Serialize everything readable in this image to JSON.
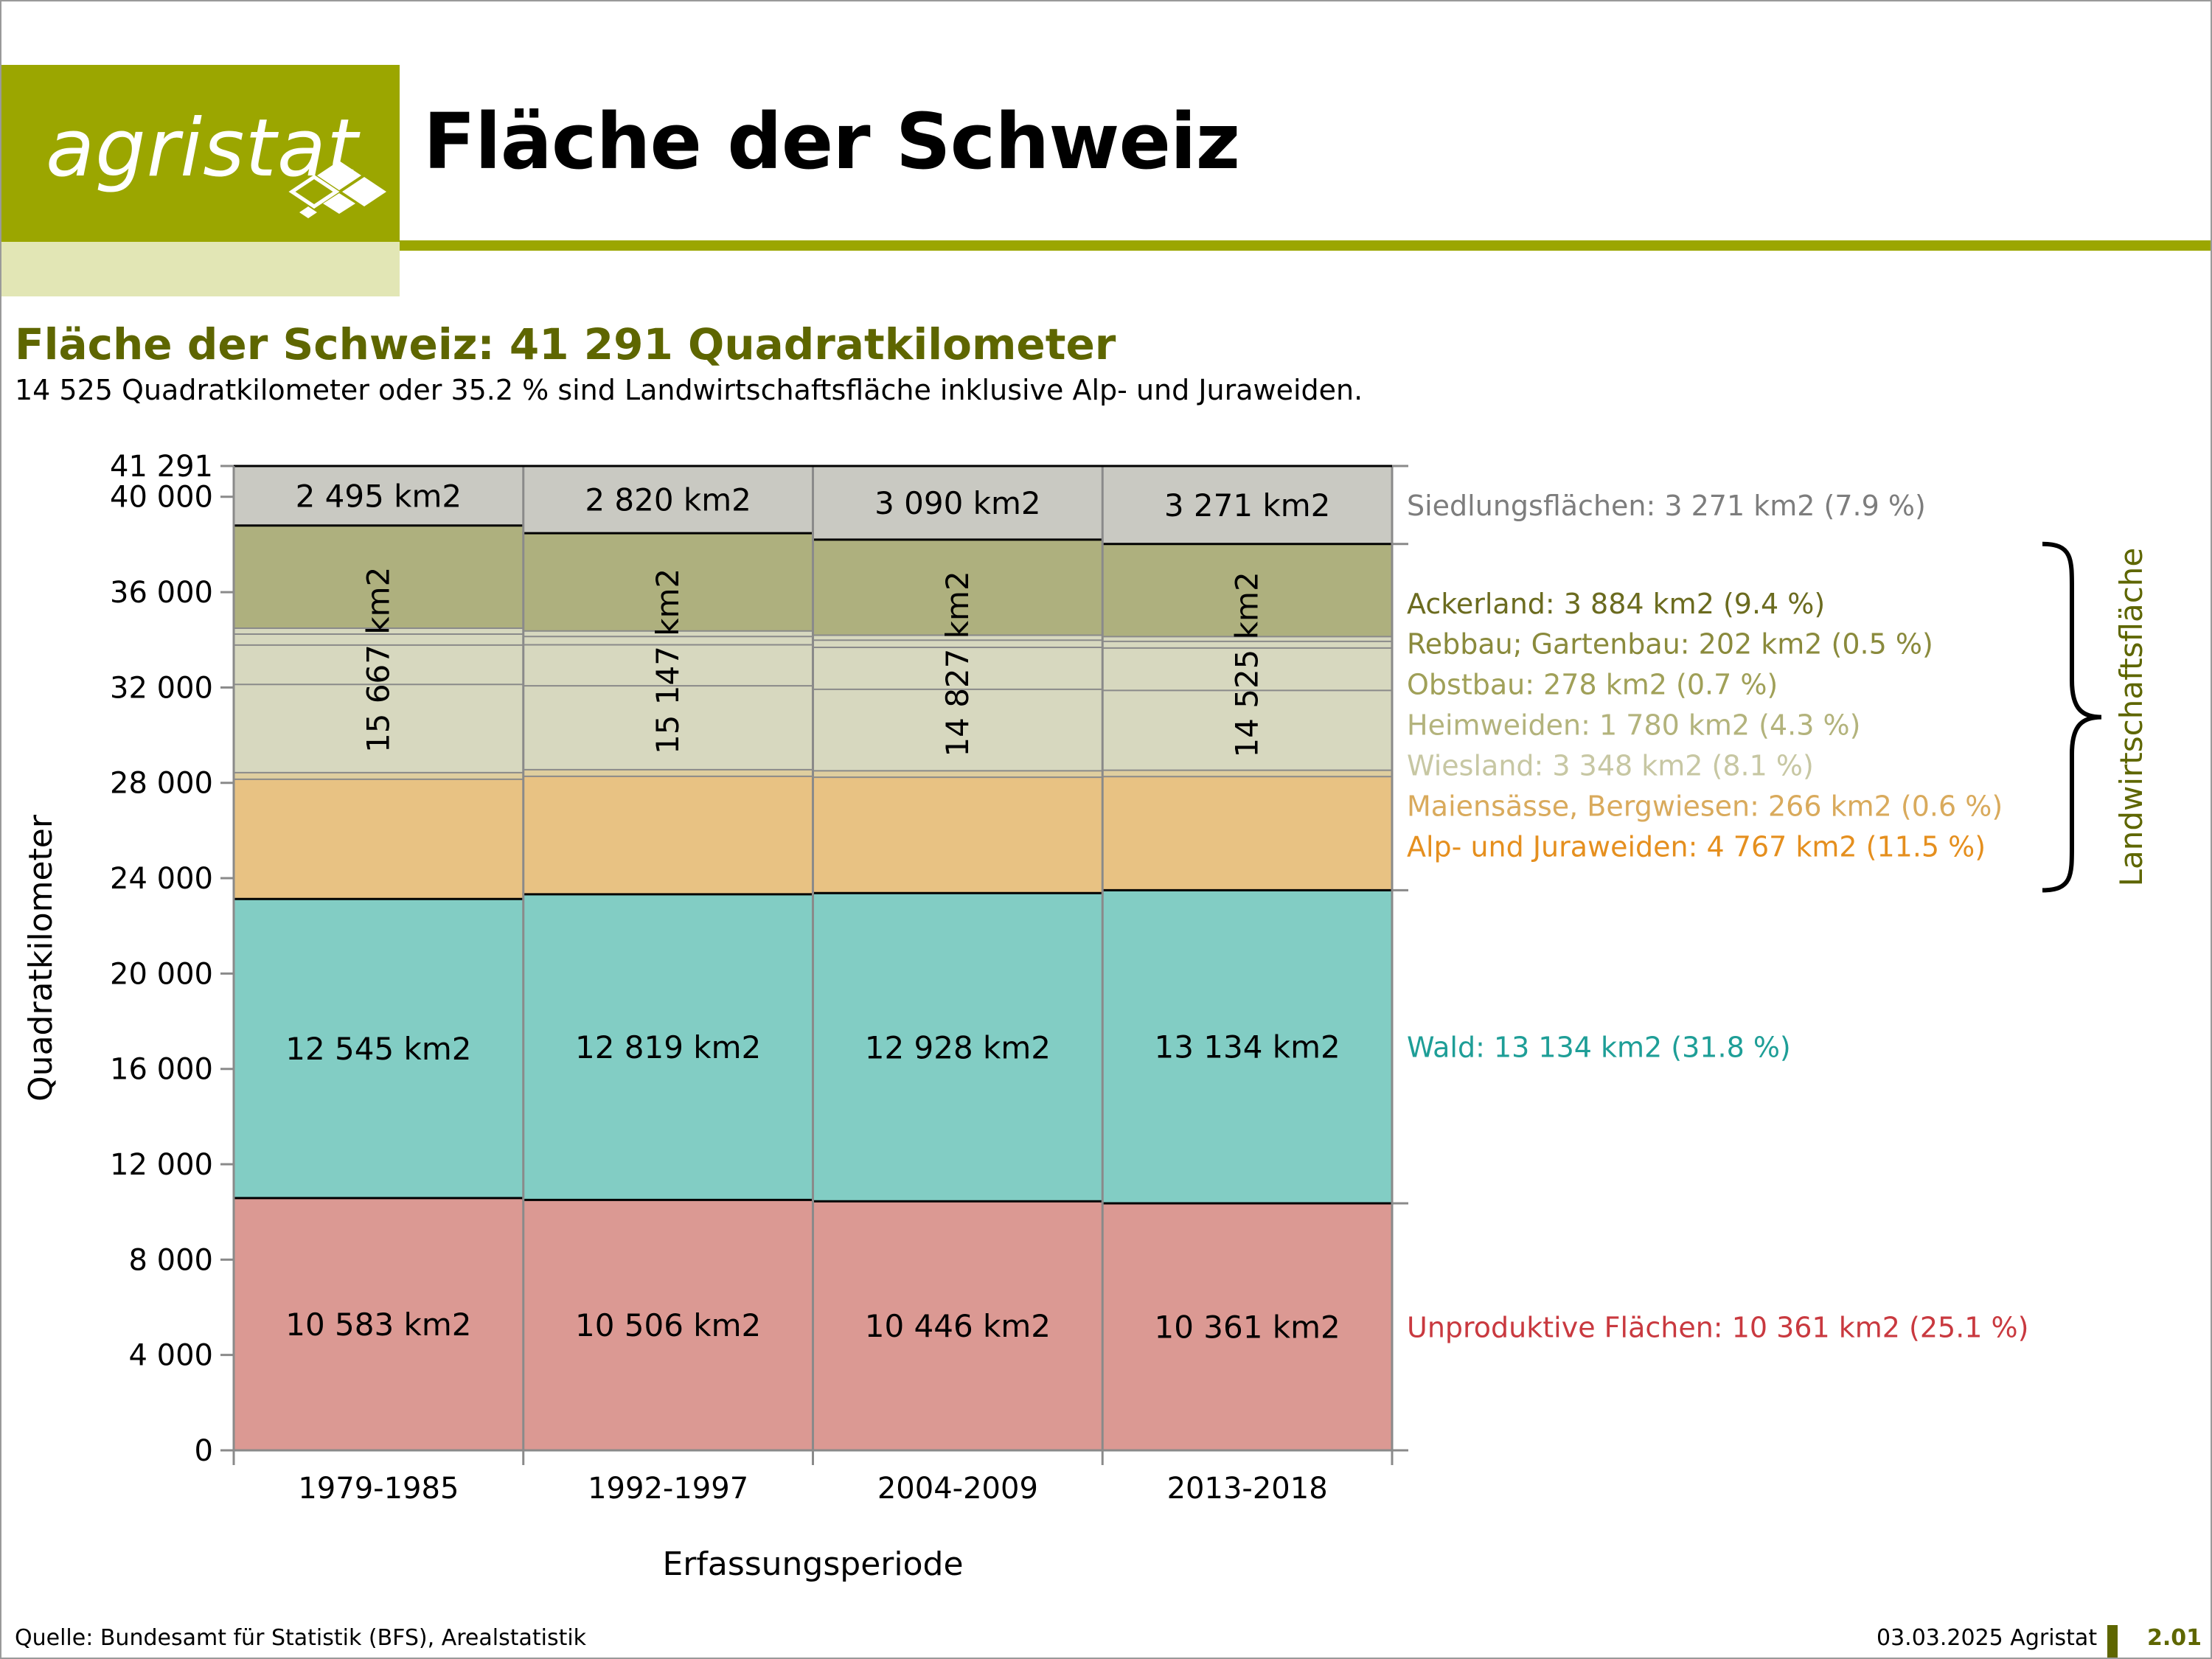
{
  "header": {
    "logo_text": "agristat",
    "title": "Fläche der Schweiz"
  },
  "subtitle": {
    "headline": "Fläche der Schweiz: 41 291 Quadratkilometer",
    "text": "14 525 Quadratkilometer oder 35.2 % sind Landwirtschaftsfläche inklusive Alp- und Juraweiden."
  },
  "footer": {
    "source": "Quelle: Bundesamt für Statistik (BFS), Arealstatistik",
    "date": "03.03.2025 Agristat",
    "page": "2.01"
  },
  "chart_data": {
    "type": "bar",
    "stacked": true,
    "xlabel": "Erfassungsperiode",
    "ylabel": "Quadratkilometer",
    "ylim": [
      0,
      41291
    ],
    "yticks": [
      0,
      4000,
      8000,
      12000,
      16000,
      20000,
      24000,
      28000,
      32000,
      36000,
      40000,
      41291
    ],
    "ytick_labels": [
      "0",
      "4 000",
      "8 000",
      "12 000",
      "16 000",
      "20 000",
      "24 000",
      "28 000",
      "32 000",
      "36 000",
      "40 000",
      "41 291"
    ],
    "categories": [
      "1979-1985",
      "1992-1997",
      "2004-2009",
      "2013-2018"
    ],
    "series": [
      {
        "name": "Unproduktive Flächen",
        "values": [
          10583,
          10506,
          10446,
          10361
        ],
        "color": "#db9993",
        "labels": [
          "10 583 km2",
          "10 506 km2",
          "10 446 km2",
          "10 361 km2"
        ]
      },
      {
        "name": "Wald",
        "values": [
          12545,
          12819,
          12928,
          13134
        ],
        "color": "#82cdc4",
        "labels": [
          "12 545 km2",
          "12 819 km2",
          "12 928 km2",
          "13 134 km2"
        ]
      },
      {
        "name": "Alp- und Juraweiden",
        "values": [
          5020,
          4950,
          4860,
          4767
        ],
        "color": "#e8c283"
      },
      {
        "name": "Maiensässe, Bergwiesen",
        "values": [
          280,
          275,
          270,
          266
        ],
        "color": "#dfce9f"
      },
      {
        "name": "Wiesland",
        "values": [
          3700,
          3520,
          3420,
          3348
        ],
        "color": "#d7d8bf"
      },
      {
        "name": "Heimweiden",
        "values": [
          1650,
          1720,
          1760,
          1780
        ],
        "color": "#d7d8bf"
      },
      {
        "name": "Obstbau",
        "values": [
          460,
          350,
          300,
          278
        ],
        "color": "#d7d8bf"
      },
      {
        "name": "Rebbau; Gartenbau",
        "values": [
          250,
          230,
          210,
          202
        ],
        "color": "#d7d8bf"
      },
      {
        "name": "Ackerland",
        "values": [
          4307,
          4102,
          4007,
          3884
        ],
        "color": "#aeb07e"
      },
      {
        "name": "Siedlungsflächen",
        "values": [
          2495,
          2820,
          3090,
          3271
        ],
        "color": "#c9c9c2",
        "labels": [
          "2 495 km2",
          "2 820 km2",
          "3 090 km2",
          "3 271 km2"
        ]
      }
    ],
    "group_labels": {
      "text": [
        "15 667 km2",
        "15 147 km2",
        "14 827 km2",
        "14 525 km2"
      ],
      "series_range": [
        2,
        8
      ]
    },
    "legend": [
      {
        "text": "Siedlungsflächen: 3 271 km2 (7.9 %)",
        "color": "#7d7d7d",
        "series": 9
      },
      {
        "text": "Ackerland: 3 884 km2 (9.4 %)",
        "color": "#6b6b1f"
      },
      {
        "text": "Rebbau; Gartenbau: 202 km2 (0.5 %)",
        "color": "#8a8a3c"
      },
      {
        "text": "Obstbau: 278 km2 (0.7 %)",
        "color": "#a0a058"
      },
      {
        "text": "Heimweiden: 1 780 km2 (4.3 %)",
        "color": "#b3b37c"
      },
      {
        "text": "Wiesland: 3 348 km2 (8.1 %)",
        "color": "#c7c7a3"
      },
      {
        "text": "Maiensässe, Bergwiesen: 266 km2 (0.6 %)",
        "color": "#d9aa5c"
      },
      {
        "text": "Alp- und Juraweiden: 4 767 km2 (11.5 %)",
        "color": "#e58f1e"
      },
      {
        "text": "Wald: 13 134 km2 (31.8 %)",
        "color": "#1e9e97",
        "series": 1
      },
      {
        "text": "Unproduktive Flächen: 10 361 km2 (25.1 %)",
        "color": "#c9393f",
        "series": 0
      }
    ],
    "bracket_label": "Landwirtschaftsfläche",
    "bracket_color": "#5e6600"
  }
}
